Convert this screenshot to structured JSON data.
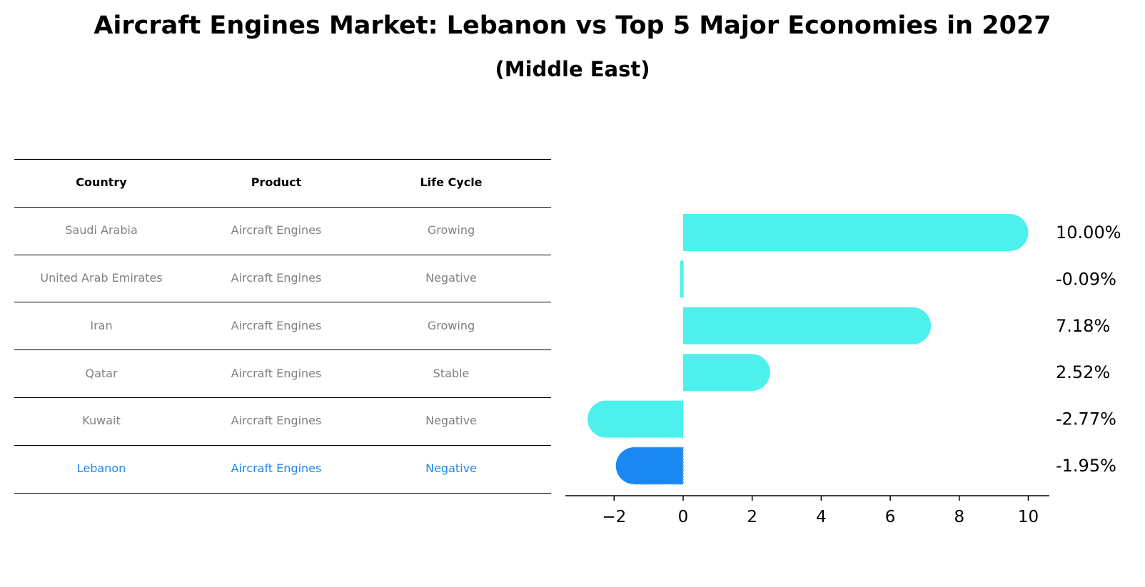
{
  "title": "Aircraft Engines Market: Lebanon vs Top 5 Major Economies in 2027",
  "subtitle": "(Middle East)",
  "table": {
    "headers": [
      "Country",
      "Product",
      "Life Cycle"
    ],
    "rows": [
      [
        "Saudi Arabia",
        "Aircraft Engines",
        "Growing"
      ],
      [
        "United Arab Emirates",
        "Aircraft Engines",
        "Negative"
      ],
      [
        "Iran",
        "Aircraft Engines",
        "Growing"
      ],
      [
        "Qatar",
        "Aircraft Engines",
        "Stable"
      ],
      [
        "Kuwait",
        "Aircraft Engines",
        "Negative"
      ],
      [
        "Lebanon",
        "Aircraft Engines",
        "Negative"
      ]
    ],
    "highlight_row": "Lebanon"
  },
  "colors": {
    "bar": "#4ef0ec",
    "highlight": "#1a88f0",
    "text_muted": "#808080"
  },
  "chart_data": {
    "type": "bar",
    "orientation": "horizontal",
    "categories": [
      "Saudi Arabia",
      "United Arab Emirates",
      "Iran",
      "Qatar",
      "Kuwait",
      "Lebanon"
    ],
    "values": [
      10.0,
      -0.09,
      7.18,
      2.52,
      -2.77,
      -1.95
    ],
    "data_labels": [
      "10.00%",
      "-0.09%",
      "7.18%",
      "2.52%",
      "-2.77%",
      "-1.95%"
    ],
    "xlim": [
      -3.4,
      10.7
    ],
    "xticks": [
      -2,
      0,
      2,
      4,
      6,
      8,
      10
    ],
    "xtick_labels": [
      "−2",
      "0",
      "2",
      "4",
      "6",
      "8",
      "10"
    ],
    "highlight": "Lebanon",
    "grid": false,
    "legend": "none"
  }
}
